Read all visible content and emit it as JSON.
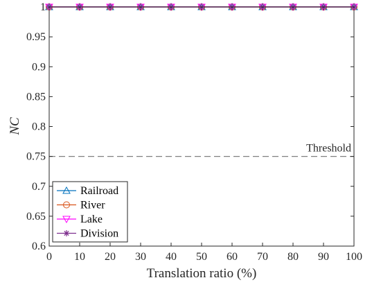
{
  "chart_data": {
    "type": "line",
    "xlabel": "Translation ratio (%)",
    "ylabel": "NC",
    "x": [
      0,
      10,
      20,
      30,
      40,
      50,
      60,
      70,
      80,
      90,
      100
    ],
    "xlim": [
      0,
      100
    ],
    "ylim": [
      0.6,
      1.0
    ],
    "xticks": [
      "0",
      "10",
      "20",
      "30",
      "40",
      "50",
      "60",
      "70",
      "80",
      "90",
      "100"
    ],
    "yticks": [
      "0.6",
      "0.65",
      "0.7",
      "0.75",
      "0.8",
      "0.85",
      "0.9",
      "0.95",
      "1"
    ],
    "grid": false,
    "legend_position": "bottom-left",
    "series": [
      {
        "name": "Railroad",
        "marker": "triangle-up",
        "color": "#0072BD",
        "values": [
          1,
          1,
          1,
          1,
          1,
          1,
          1,
          1,
          1,
          1,
          1
        ]
      },
      {
        "name": "River",
        "marker": "circle",
        "color": "#D95319",
        "values": [
          1,
          1,
          1,
          1,
          1,
          1,
          1,
          1,
          1,
          1,
          1
        ]
      },
      {
        "name": "Lake",
        "marker": "triangle-down",
        "color": "#FF00FF",
        "values": [
          1,
          1,
          1,
          1,
          1,
          1,
          1,
          1,
          1,
          1,
          1
        ]
      },
      {
        "name": "Division",
        "marker": "asterisk",
        "color": "#7E2F8E",
        "values": [
          1,
          1,
          1,
          1,
          1,
          1,
          1,
          1,
          1,
          1,
          1
        ]
      }
    ],
    "annotations": [
      {
        "text": "Threshold",
        "y": 0.75,
        "style": "dashed",
        "color": "#808080"
      }
    ]
  }
}
